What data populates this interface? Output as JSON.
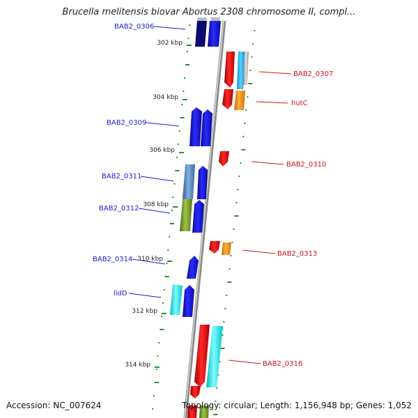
{
  "header": {
    "title": "Brucella melitensis biovar Abortus 2308 chromosome II, compl..."
  },
  "footer": {
    "accession_label": "Accession:",
    "accession": "NC_007624",
    "topology_label": "Topology:",
    "topology": "circular",
    "length_label": "Length:",
    "length": "1,156,948 bp",
    "genes_label": "Genes:",
    "genes": "1,052"
  },
  "colors": {
    "forward_label": "#1a1ad0",
    "reverse_label": "#d01010",
    "backbone": "#8c8c8c",
    "gc_ticks": "#2f8a2f"
  },
  "scale": {
    "unit": "kbp",
    "ticks": [
      "302 kbp",
      "304 kbp",
      "306 kbp",
      "308 kbp",
      "310 kbp",
      "312 kbp",
      "314 kbp"
    ]
  },
  "genes": {
    "forward": [
      {
        "label": "BAB2_0306",
        "color": "#1010d0"
      },
      {
        "label": "BAB2_0309",
        "color": "#1010d0"
      },
      {
        "label": "BAB2_0311",
        "color": "#4a7fb5"
      },
      {
        "label": "BAB2_0312",
        "color": "#6b8e23"
      },
      {
        "label": "BAB2_0314",
        "color": "#1010d0"
      },
      {
        "label": "lldD",
        "color": "#00e5ee"
      }
    ],
    "reverse": [
      {
        "label": "BAB2_0307",
        "color": "#e01010"
      },
      {
        "label": "hutC",
        "color": "#f08c00"
      },
      {
        "label": "BAB2_0310",
        "color": "#e01010"
      },
      {
        "label": "BAB2_0313",
        "color": "#e01010"
      },
      {
        "label": "BAB2_0316",
        "color": "#e01010"
      }
    ]
  }
}
